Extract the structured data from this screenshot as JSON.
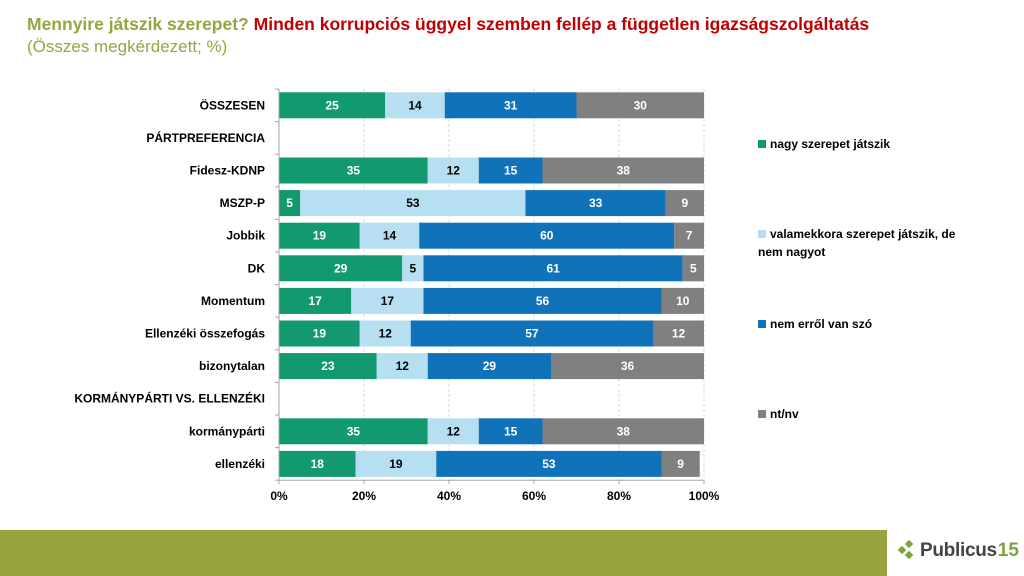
{
  "header": {
    "question": "Mennyire játszik szerepet?",
    "statement": "Minden korrupciós üggyel szemben fellép a független igazságszolgáltatás",
    "subtitle": "(Összes megkérdezett; %)"
  },
  "colors": {
    "series": [
      "#13996f",
      "#b7dff2",
      "#1072b9",
      "#808080"
    ],
    "label_text": [
      "#ffffff",
      "#000000",
      "#ffffff",
      "#ffffff"
    ],
    "title_green": "#97a53f",
    "title_red": "#c00000",
    "footer_bar": "#99a43f"
  },
  "chart_data": {
    "type": "bar",
    "orientation": "horizontal",
    "stacked": "100%",
    "title": "Mennyire játszik szerepet? Minden korrupciós üggyel szemben fellép a független igazságszolgáltatás",
    "subtitle": "(Összes megkérdezett; %)",
    "categories": [
      "ÖSSZESEN",
      "PÁRTPREFERENCIA",
      "Fidesz-KDNP",
      "MSZP-P",
      "Jobbik",
      "DK",
      "Momentum",
      "Ellenzéki összefogás",
      "bizonytalan",
      "KORMÁNYPÁRTI VS. ELLENZÉKI",
      "kormánypárti",
      "ellenzéki"
    ],
    "series": [
      {
        "name": "nagy szerepet játszik",
        "values": [
          25,
          null,
          35,
          5,
          19,
          29,
          17,
          19,
          23,
          null,
          35,
          18
        ]
      },
      {
        "name": "valamekkora szerepet játszik, de nem nagyot",
        "values": [
          14,
          null,
          12,
          53,
          14,
          5,
          17,
          12,
          12,
          null,
          12,
          19
        ]
      },
      {
        "name": "nem erről van szó",
        "values": [
          31,
          null,
          15,
          33,
          60,
          61,
          56,
          57,
          29,
          null,
          15,
          53
        ]
      },
      {
        "name": "nt/nv",
        "values": [
          30,
          null,
          38,
          9,
          7,
          5,
          10,
          12,
          36,
          null,
          38,
          9
        ]
      }
    ],
    "xlabel": "",
    "ylabel": "",
    "xlim": [
      0,
      100
    ],
    "xticks": [
      "0%",
      "20%",
      "40%",
      "60%",
      "80%",
      "100%"
    ],
    "grid": "vertical dashed",
    "legend": "right"
  },
  "legend": {
    "items": [
      {
        "label_line1": "nagy szerepet játszik",
        "label_line2": ""
      },
      {
        "label_line1": "valamekkora szerepet játszik, de",
        "label_line2": "nem nagyot"
      },
      {
        "label_line1": "nem erről van szó",
        "label_line2": ""
      },
      {
        "label_line1": "nt/nv",
        "label_line2": ""
      }
    ]
  },
  "footer": {
    "logo_text": "Publicus",
    "logo_number": "15"
  }
}
